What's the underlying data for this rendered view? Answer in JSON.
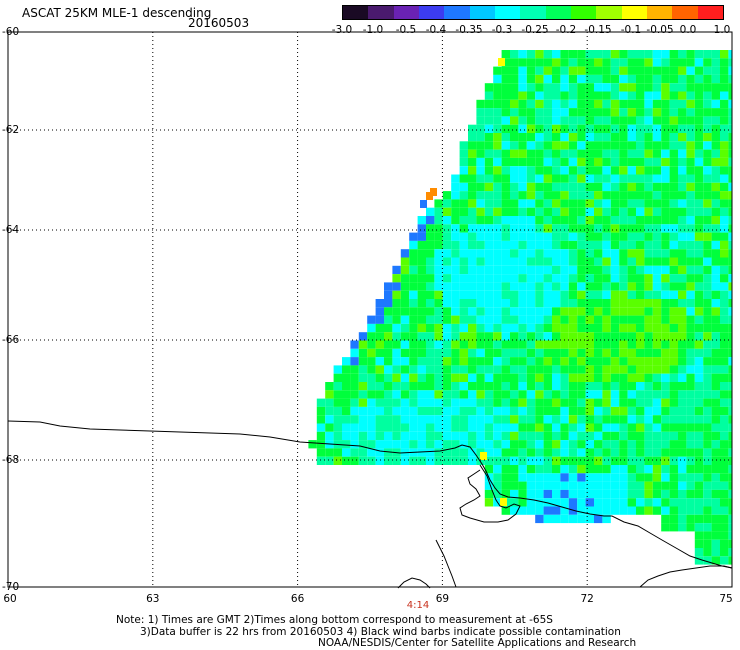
{
  "header": {
    "title": "ASCAT 25KM MLE-1 descending",
    "date": "20160503"
  },
  "colorbar": {
    "labels": [
      "-3.0",
      "-1.0",
      "-0.5",
      "-0.4",
      "-0.35",
      "-0.3",
      "-0.25",
      "-0.2",
      "-0.15",
      "-0.1",
      "-0.05",
      "0.0",
      "1.0"
    ],
    "colors": [
      "#1a0a24",
      "#4a1a6e",
      "#6a22b4",
      "#3c3cf0",
      "#1e78ff",
      "#00c8ff",
      "#00ffff",
      "#00ffb4",
      "#00ff5a",
      "#32ff00",
      "#a0ff00",
      "#ffff00",
      "#ffb400",
      "#ff6400",
      "#ff1e1e"
    ]
  },
  "axes": {
    "y_labels": [
      "-60",
      "-62",
      "-64",
      "-66",
      "-68",
      "-70"
    ],
    "x_labels": [
      "60",
      "63",
      "66",
      "69",
      "72",
      "75"
    ],
    "lat_range": [
      -70,
      -60
    ],
    "lon_range": [
      60,
      75
    ]
  },
  "time_label": "4:14",
  "notes": {
    "line1": "Note: 1) Times are GMT 2)Times along bottom correspond to measurement at -65S",
    "line2": "3)Data buffer is 22 hrs from 20160503 4) Black wind barbs indicate possible contamination",
    "line3": "NOAA/NESDIS/Center for Satellite Applications and Research"
  },
  "legend_colors": {
    "cyan": "#00ffff",
    "aqua_green": "#00ffa0",
    "green": "#00ff3c",
    "lime": "#5aff00",
    "blue": "#1e78ff",
    "yellow": "#ffff00",
    "orange": "#ff8c00",
    "coast": "#000000"
  }
}
